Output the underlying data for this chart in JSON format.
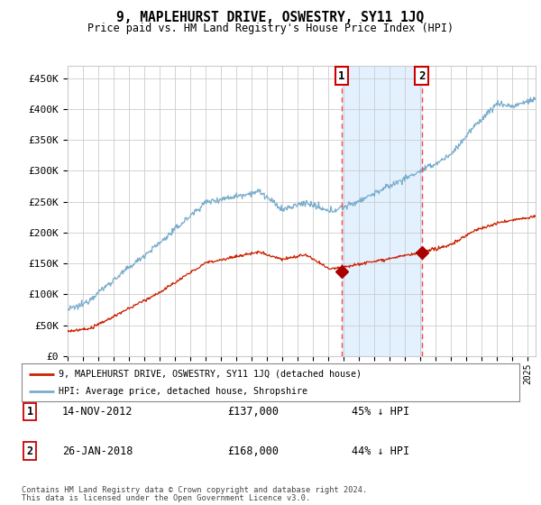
{
  "title": "9, MAPLEHURST DRIVE, OSWESTRY, SY11 1JQ",
  "subtitle": "Price paid vs. HM Land Registry's House Price Index (HPI)",
  "ylabel_ticks": [
    "£0",
    "£50K",
    "£100K",
    "£150K",
    "£200K",
    "£250K",
    "£300K",
    "£350K",
    "£400K",
    "£450K"
  ],
  "ytick_values": [
    0,
    50000,
    100000,
    150000,
    200000,
    250000,
    300000,
    350000,
    400000,
    450000
  ],
  "ylim": [
    0,
    470000
  ],
  "xlim_start": 1995.0,
  "xlim_end": 2025.5,
  "transaction1_date": 2012.87,
  "transaction1_price": 137000,
  "transaction2_date": 2018.07,
  "transaction2_price": 168000,
  "legend_line1": "9, MAPLEHURST DRIVE, OSWESTRY, SY11 1JQ (detached house)",
  "legend_line2": "HPI: Average price, detached house, Shropshire",
  "footnote1": "Contains HM Land Registry data © Crown copyright and database right 2024.",
  "footnote2": "This data is licensed under the Open Government Licence v3.0.",
  "hpi_color": "#7aadcc",
  "property_color": "#cc2200",
  "shade_color": "#ddeeff",
  "vline_color": "#ff4444",
  "dot_color": "#aa0000",
  "grid_color": "#cccccc",
  "background_color": "#ffffff",
  "box_edge_color": "#cc0000"
}
